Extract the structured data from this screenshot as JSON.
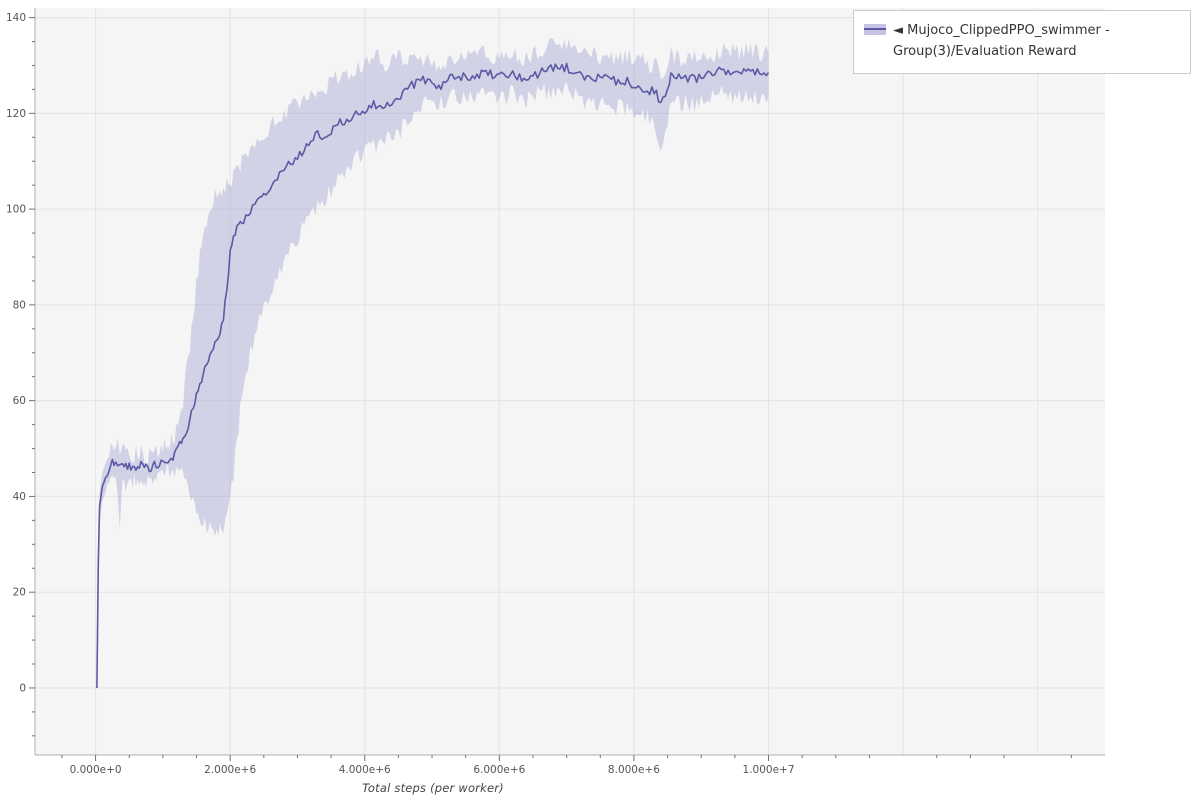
{
  "page": {
    "background": "#ffffff"
  },
  "legend": {
    "position": "top-right-outside",
    "items": [
      {
        "label": "◄ Mujoco_ClippedPPO_swimmer - Group(3)/Evaluation Reward",
        "line_color": "#5b5aa5",
        "fill_color": "#c6c4e2"
      }
    ]
  },
  "chart_data": {
    "type": "line",
    "title": "",
    "xlabel": "Total steps (per worker)",
    "ylabel": "",
    "xlim": [
      -900000,
      15000000
    ],
    "ylim": [
      -14,
      142
    ],
    "grid": true,
    "plot_bg": "#f5f5f5",
    "grid_color": "#e4e4e4",
    "axis_line_color": "#b0b0b0",
    "tick_color": "#707070",
    "tick_label_color": "#555555",
    "x_ticks": [
      {
        "value": 0,
        "label": "0.000e+0"
      },
      {
        "value": 2000000,
        "label": "2.000e+6"
      },
      {
        "value": 4000000,
        "label": "4.000e+6"
      },
      {
        "value": 6000000,
        "label": "6.000e+6"
      },
      {
        "value": 8000000,
        "label": "8.000e+6"
      },
      {
        "value": 10000000,
        "label": "1.000e+7"
      }
    ],
    "x_grid_extra": [
      12000000,
      14000000
    ],
    "y_ticks": [
      {
        "value": 0,
        "label": "0"
      },
      {
        "value": 20,
        "label": "20"
      },
      {
        "value": 40,
        "label": "40"
      },
      {
        "value": 60,
        "label": "60"
      },
      {
        "value": 80,
        "label": "80"
      },
      {
        "value": 100,
        "label": "100"
      },
      {
        "value": 120,
        "label": "120"
      },
      {
        "value": 140,
        "label": "140"
      }
    ],
    "noise": {
      "mean": 2.0,
      "band": 4.0
    },
    "series": [
      {
        "name": "Mujoco_ClippedPPO_swimmer - Group(3)/Evaluation Reward",
        "line_color": "#5b5aa5",
        "line_width": 1.6,
        "band_color": "#8d8bc9",
        "band_opacity": 0.33,
        "x_millions": [
          0.02,
          0.04,
          0.06,
          0.1,
          0.15,
          0.2,
          0.25,
          0.3,
          0.33,
          0.36,
          0.4,
          0.45,
          0.5,
          0.55,
          0.6,
          0.65,
          0.7,
          0.75,
          0.8,
          0.85,
          0.9,
          0.95,
          1.0,
          1.05,
          1.1,
          1.15,
          1.2,
          1.25,
          1.3,
          1.35,
          1.4,
          1.45,
          1.5,
          1.55,
          1.6,
          1.65,
          1.7,
          1.75,
          1.8,
          1.85,
          1.9,
          1.95,
          2.0,
          2.05,
          2.1,
          2.15,
          2.2,
          2.3,
          2.4,
          2.5,
          2.6,
          2.7,
          2.8,
          2.9,
          3.0,
          3.1,
          3.2,
          3.3,
          3.4,
          3.5,
          3.6,
          3.7,
          3.8,
          3.9,
          4.0,
          4.1,
          4.2,
          4.3,
          4.4,
          4.5,
          4.6,
          4.7,
          4.8,
          4.9,
          5.0,
          5.1,
          5.2,
          5.3,
          5.4,
          5.5,
          5.6,
          5.7,
          5.8,
          5.9,
          6.0,
          6.1,
          6.2,
          6.3,
          6.4,
          6.5,
          6.6,
          6.7,
          6.8,
          6.9,
          7.0,
          7.1,
          7.2,
          7.3,
          7.4,
          7.5,
          7.6,
          7.7,
          7.8,
          7.9,
          8.0,
          8.1,
          8.2,
          8.3,
          8.4,
          8.5,
          8.55,
          8.6,
          8.7,
          8.8,
          8.9,
          9.0,
          9.1,
          9.2,
          9.3,
          9.4,
          9.5,
          9.6,
          9.7,
          9.8,
          9.9,
          10.0
        ],
        "mean": [
          0,
          26,
          38,
          42,
          44,
          45.5,
          47,
          47.5,
          47,
          46.5,
          46,
          46.5,
          46,
          45.5,
          46,
          46.2,
          46.5,
          46,
          46,
          46.3,
          46.5,
          47,
          47,
          47.5,
          48,
          48.5,
          49.5,
          51.5,
          52,
          54,
          56,
          58,
          61,
          63,
          66,
          68,
          70,
          71,
          72,
          74,
          77,
          83,
          91,
          94.5,
          96,
          97,
          98,
          100,
          101.5,
          103,
          105,
          106.5,
          108,
          109.5,
          111,
          112.5,
          114,
          115.5,
          114.5,
          116,
          117.5,
          118.5,
          119.5,
          120.5,
          121,
          121.5,
          122,
          121,
          122.5,
          123.5,
          125,
          126,
          126.5,
          127,
          126.5,
          125.5,
          127,
          127.5,
          127.5,
          128,
          127.5,
          128,
          128.5,
          128,
          128.5,
          128,
          129,
          127.5,
          127,
          128,
          128.5,
          129,
          129.5,
          129,
          129.5,
          129,
          128,
          127.5,
          127,
          127.5,
          128,
          127,
          126.5,
          127,
          126,
          125.5,
          125,
          124.5,
          122.5,
          125,
          128.5,
          128,
          127,
          127.5,
          127,
          128,
          128.5,
          128,
          129,
          128.5,
          129,
          128.5,
          129,
          128.5,
          128,
          128.5
        ],
        "band_lower": [
          0,
          24,
          35,
          39,
          41,
          42,
          43,
          43,
          40,
          34,
          42,
          43,
          43.5,
          43,
          43.5,
          44,
          44,
          44,
          43.5,
          44,
          44,
          44.5,
          44.5,
          45,
          45,
          45,
          45,
          45,
          44,
          42,
          40,
          38,
          37,
          36,
          35,
          34,
          34,
          33.5,
          33,
          33,
          34,
          36,
          40,
          45,
          52,
          58,
          63,
          70,
          75,
          79,
          83,
          86,
          89,
          92,
          94,
          97,
          99,
          101,
          102,
          104,
          106,
          108,
          110,
          111,
          112,
          113,
          113.5,
          114,
          115,
          116,
          118,
          120,
          121.5,
          122.5,
          122,
          121.5,
          123,
          123.5,
          123.5,
          124,
          123.5,
          124,
          124.5,
          124,
          124,
          123.5,
          124.5,
          123,
          122.5,
          123.5,
          124,
          124.5,
          125,
          124.5,
          125,
          124,
          123,
          122.5,
          122,
          122,
          122.5,
          121.5,
          121,
          121,
          120.5,
          120,
          119,
          118,
          114,
          117,
          122,
          122.5,
          122,
          122.5,
          122,
          123,
          123.5,
          123,
          124,
          123.5,
          124,
          123.5,
          124,
          123.5,
          123,
          123.5
        ],
        "band_upper": [
          0,
          28,
          41,
          45,
          47,
          49,
          51,
          52,
          51,
          50,
          49.5,
          50,
          49,
          48.5,
          49,
          49,
          49.5,
          48.5,
          48.5,
          49,
          49,
          49.5,
          50,
          50.5,
          51,
          52,
          54,
          58,
          60,
          66,
          72,
          78,
          85,
          90,
          95,
          98,
          100,
          102,
          103,
          104,
          105,
          105,
          106,
          107,
          108,
          109,
          110,
          112,
          113,
          115,
          117,
          119,
          120,
          121,
          122,
          123.5,
          124.5,
          125.5,
          125,
          126.5,
          127.5,
          128,
          128.5,
          129.5,
          130.5,
          131,
          131.5,
          130.5,
          131,
          131.5,
          131.5,
          131.5,
          131.5,
          131,
          130.5,
          130,
          131,
          131.5,
          131.5,
          132,
          131.5,
          132,
          132.5,
          132,
          132.5,
          132,
          132.5,
          131.5,
          131.5,
          132.5,
          133,
          133.5,
          134,
          133.5,
          134.5,
          135,
          133.5,
          132.5,
          132,
          132,
          132.5,
          131.5,
          131.5,
          132,
          131,
          131,
          130.5,
          130,
          129,
          130,
          132.5,
          132,
          131.5,
          132,
          131.5,
          132,
          132.5,
          132.5,
          133,
          132.5,
          133,
          132.5,
          133.5,
          132.5,
          132,
          132.5
        ]
      }
    ]
  }
}
